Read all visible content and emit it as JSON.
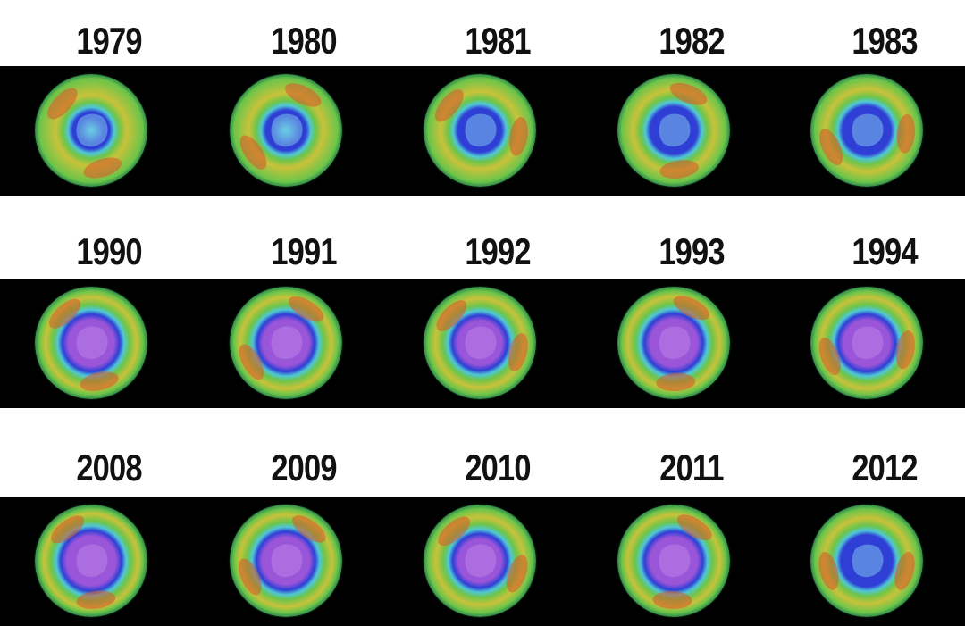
{
  "rows": [
    {
      "years": [
        "1979",
        "1980",
        "1981",
        "1982",
        "1983"
      ],
      "hole_level": [
        0.25,
        0.35,
        0.45,
        0.55,
        0.6
      ]
    },
    {
      "years": [
        "1990",
        "1991",
        "1992",
        "1993",
        "1994"
      ],
      "hole_level": [
        0.85,
        0.85,
        0.8,
        0.9,
        0.88
      ]
    },
    {
      "years": [
        "2008",
        "2009",
        "2010",
        "2011",
        "2012"
      ],
      "hole_level": [
        0.95,
        0.9,
        0.75,
        0.9,
        0.7
      ]
    }
  ],
  "colors": {
    "band": "#000000",
    "label": "#111111",
    "ring_green": "#6cc54a",
    "ring_yellow": "#c9c23a",
    "ring_red": "#d8552a",
    "hole_cyan": "#4fc7d6",
    "hole_blue": "#2f3fd6",
    "hole_purple": "#9a55d9"
  }
}
